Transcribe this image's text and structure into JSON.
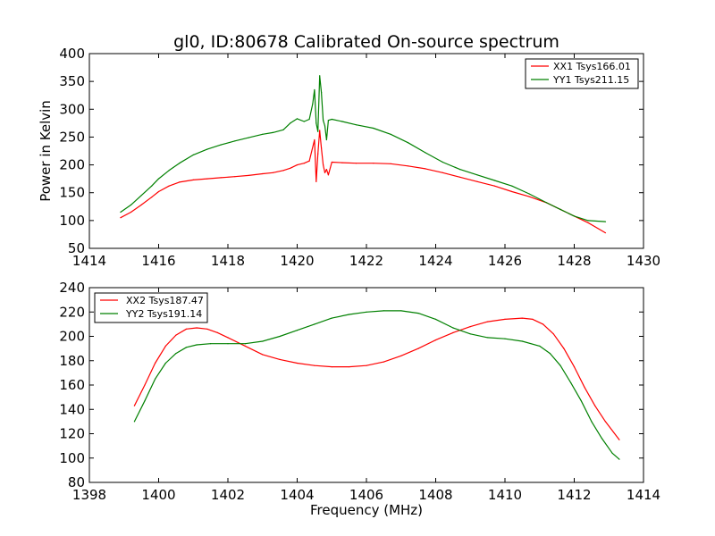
{
  "chart_data": [
    {
      "type": "line",
      "title": "gl0, ID:80678 Calibrated On-source spectrum",
      "xlabel": "",
      "ylabel": "Power in Kelvin",
      "xlim": [
        1414,
        1430
      ],
      "ylim": [
        50,
        400
      ],
      "xticks": [
        1414,
        1416,
        1418,
        1420,
        1422,
        1424,
        1426,
        1428,
        1430
      ],
      "yticks": [
        50,
        100,
        150,
        200,
        250,
        300,
        350,
        400
      ],
      "legend_position": "top-right",
      "series": [
        {
          "name": "XX1 Tsys166.01",
          "color": "#ff0000",
          "x": [
            1414.9,
            1415.2,
            1415.5,
            1415.8,
            1416.0,
            1416.3,
            1416.6,
            1417.0,
            1417.4,
            1417.8,
            1418.2,
            1418.6,
            1419.0,
            1419.3,
            1419.6,
            1419.8,
            1420.0,
            1420.2,
            1420.35,
            1420.5,
            1420.55,
            1420.6,
            1420.65,
            1420.7,
            1420.75,
            1420.8,
            1420.85,
            1420.9,
            1421.0,
            1421.3,
            1421.7,
            1422.2,
            1422.7,
            1423.2,
            1423.7,
            1424.2,
            1424.7,
            1425.2,
            1425.7,
            1426.2,
            1426.7,
            1427.2,
            1427.6,
            1428.0,
            1428.4,
            1428.9
          ],
          "values": [
            105,
            115,
            128,
            142,
            152,
            162,
            169,
            173,
            175,
            177,
            179,
            181,
            184,
            186,
            190,
            194,
            200,
            203,
            207,
            245,
            170,
            220,
            262,
            230,
            200,
            186,
            192,
            182,
            205,
            204,
            203,
            203,
            202,
            198,
            193,
            186,
            178,
            170,
            162,
            152,
            143,
            132,
            120,
            108,
            96,
            78
          ]
        },
        {
          "name": "YY1 Tsys211.15",
          "color": "#008000",
          "x": [
            1414.9,
            1415.2,
            1415.5,
            1415.8,
            1416.0,
            1416.3,
            1416.6,
            1417.0,
            1417.4,
            1417.8,
            1418.2,
            1418.6,
            1419.0,
            1419.3,
            1419.6,
            1419.8,
            1420.0,
            1420.2,
            1420.35,
            1420.45,
            1420.5,
            1420.55,
            1420.6,
            1420.65,
            1420.7,
            1420.75,
            1420.8,
            1420.85,
            1420.9,
            1421.0,
            1421.3,
            1421.7,
            1422.2,
            1422.7,
            1423.2,
            1423.7,
            1424.2,
            1424.7,
            1425.2,
            1425.7,
            1426.2,
            1426.7,
            1427.2,
            1427.6,
            1428.0,
            1428.4,
            1428.9
          ],
          "values": [
            115,
            128,
            145,
            162,
            175,
            190,
            203,
            218,
            228,
            236,
            243,
            249,
            255,
            258,
            263,
            275,
            283,
            278,
            282,
            310,
            335,
            275,
            260,
            360,
            330,
            280,
            270,
            245,
            280,
            282,
            278,
            272,
            266,
            255,
            240,
            222,
            205,
            192,
            182,
            172,
            162,
            148,
            132,
            120,
            108,
            100,
            98
          ]
        }
      ]
    },
    {
      "type": "line",
      "title": "",
      "xlabel": "Frequency (MHz)",
      "ylabel": "",
      "xlim": [
        1398,
        1414
      ],
      "ylim": [
        80,
        240
      ],
      "xticks": [
        1398,
        1400,
        1402,
        1404,
        1406,
        1408,
        1410,
        1412,
        1414
      ],
      "yticks": [
        80,
        100,
        120,
        140,
        160,
        180,
        200,
        220,
        240
      ],
      "legend_position": "top-left",
      "series": [
        {
          "name": "XX2 Tsys187.47",
          "color": "#ff0000",
          "x": [
            1399.3,
            1399.6,
            1399.9,
            1400.2,
            1400.5,
            1400.8,
            1401.1,
            1401.4,
            1401.7,
            1402.0,
            1402.5,
            1403.0,
            1403.5,
            1404.0,
            1404.5,
            1405.0,
            1405.5,
            1406.0,
            1406.5,
            1407.0,
            1407.5,
            1408.0,
            1408.5,
            1409.0,
            1409.5,
            1410.0,
            1410.5,
            1410.8,
            1411.1,
            1411.4,
            1411.7,
            1412.0,
            1412.3,
            1412.6,
            1412.9,
            1413.3
          ],
          "values": [
            143,
            160,
            178,
            192,
            201,
            206,
            207,
            206,
            203,
            199,
            192,
            185,
            181,
            178,
            176,
            175,
            175,
            176,
            179,
            184,
            190,
            197,
            203,
            208,
            212,
            214,
            215,
            214,
            210,
            202,
            190,
            175,
            158,
            143,
            130,
            115
          ]
        },
        {
          "name": "YY2 Tsys191.14",
          "color": "#008000",
          "x": [
            1399.3,
            1399.6,
            1399.9,
            1400.2,
            1400.5,
            1400.8,
            1401.1,
            1401.5,
            1402.0,
            1402.5,
            1403.0,
            1403.5,
            1404.0,
            1404.5,
            1405.0,
            1405.5,
            1406.0,
            1406.5,
            1407.0,
            1407.5,
            1408.0,
            1408.5,
            1409.0,
            1409.5,
            1410.0,
            1410.5,
            1411.0,
            1411.3,
            1411.6,
            1411.9,
            1412.2,
            1412.5,
            1412.8,
            1413.1,
            1413.3
          ],
          "values": [
            130,
            147,
            165,
            178,
            186,
            191,
            193,
            194,
            194,
            194,
            196,
            200,
            205,
            210,
            215,
            218,
            220,
            221,
            221,
            219,
            214,
            207,
            202,
            199,
            198,
            196,
            192,
            186,
            176,
            162,
            147,
            130,
            116,
            104,
            99
          ]
        }
      ]
    }
  ]
}
